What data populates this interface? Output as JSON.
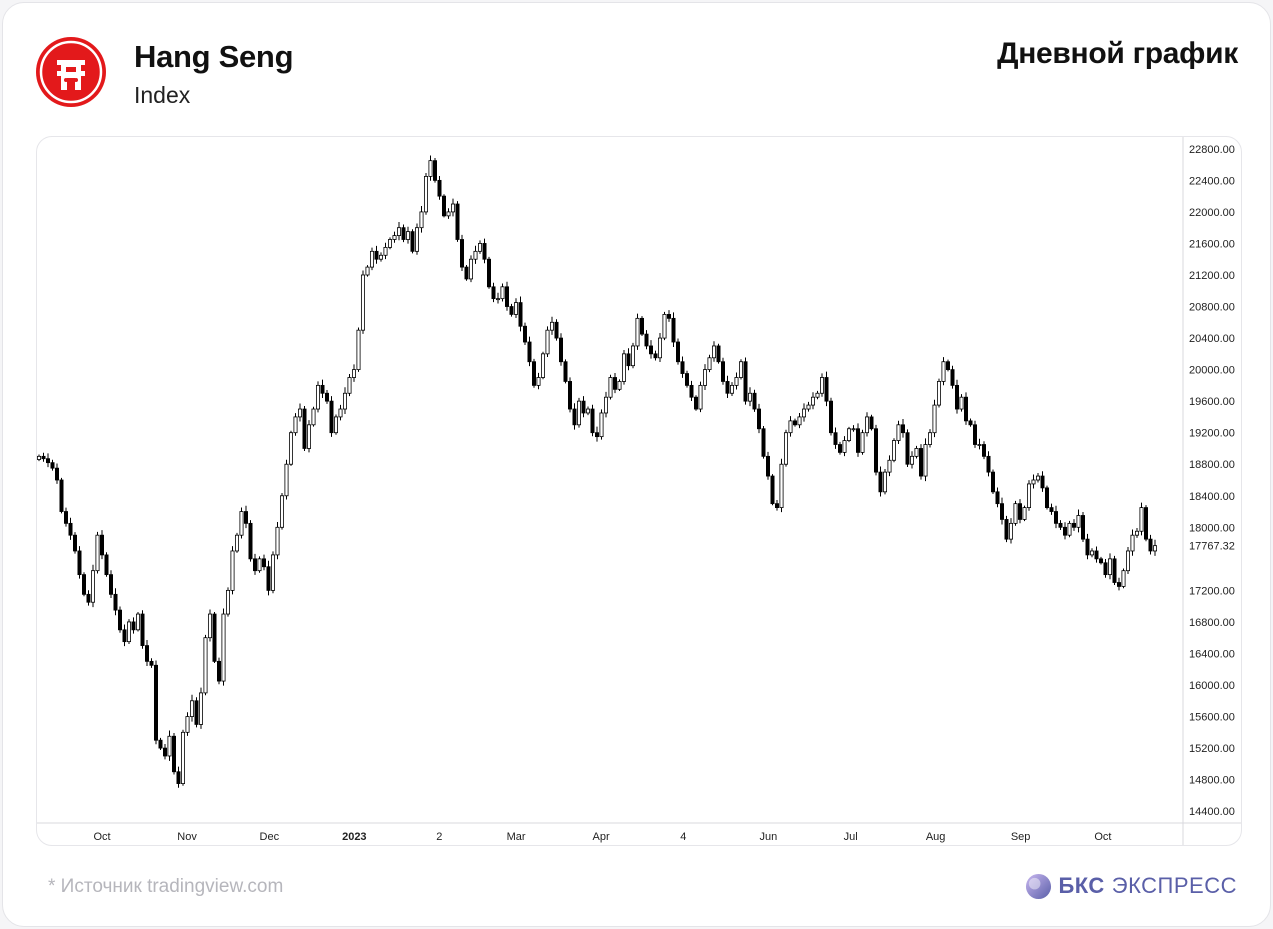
{
  "header": {
    "title": "Hang Seng",
    "subtitle": "Index",
    "chart_type_label": "Дневной график"
  },
  "footer": {
    "source": "*  Источник tradingview.com",
    "brand_bold": "БКС",
    "brand_light": "ЭКСПРЕСС"
  },
  "colors": {
    "logo_red": "#e3191b",
    "candle_outline": "#000000",
    "candle_down_fill": "#000000",
    "candle_up_fill": "#ffffff",
    "brand": "#5a5fa8"
  },
  "icons": {
    "logo": "hang-seng-logo",
    "brand": "bcs-brand-mark"
  },
  "chart_data": {
    "type": "candlestick",
    "title": "",
    "xlabel": "",
    "ylabel": "",
    "y_ticks": [
      "22800.00",
      "22400.00",
      "22000.00",
      "21600.00",
      "21200.00",
      "20800.00",
      "20400.00",
      "20000.00",
      "19600.00",
      "19200.00",
      "18800.00",
      "18400.00",
      "18000.00",
      "17200.00",
      "16800.00",
      "16400.00",
      "16000.00",
      "15600.00",
      "15200.00",
      "14800.00",
      "14400.00"
    ],
    "last_price": "17767.32",
    "ylim": [
      14250,
      22950
    ],
    "x_ticks": [
      {
        "label": "Oct",
        "date": "2022-10-01",
        "bold": false
      },
      {
        "label": "Nov",
        "date": "2022-11-01",
        "bold": false
      },
      {
        "label": "Dec",
        "date": "2022-12-01",
        "bold": false
      },
      {
        "label": "2023",
        "date": "2023-01-01",
        "bold": true
      },
      {
        "label": "2",
        "date": "2023-02-01",
        "bold": false
      },
      {
        "label": "Mar",
        "date": "2023-03-01",
        "bold": false
      },
      {
        "label": "Apr",
        "date": "2023-04-01",
        "bold": false
      },
      {
        "label": "4",
        "date": "2023-05-01",
        "bold": false
      },
      {
        "label": "Jun",
        "date": "2023-06-01",
        "bold": false
      },
      {
        "label": "Jul",
        "date": "2023-07-01",
        "bold": false
      },
      {
        "label": "Aug",
        "date": "2023-08-01",
        "bold": false
      },
      {
        "label": "Sep",
        "date": "2023-09-01",
        "bold": false
      },
      {
        "label": "Oct",
        "date": "2023-10-01",
        "bold": false
      }
    ],
    "series": [
      {
        "x_start": "2022-09-08",
        "x_end": "2023-10-20",
        "close": [
          18900,
          18870,
          18820,
          18750,
          18600,
          18200,
          18050,
          17900,
          17700,
          17400,
          17150,
          17050,
          17450,
          17900,
          17650,
          17400,
          17150,
          16950,
          16700,
          16550,
          16800,
          16700,
          16900,
          16500,
          16300,
          16250,
          15300,
          15200,
          15100,
          15350,
          14900,
          14750,
          15400,
          15600,
          15800,
          15500,
          15900,
          16600,
          16900,
          16300,
          16050,
          16900,
          17200,
          17700,
          17900,
          18200,
          18050,
          17600,
          17450,
          17600,
          17500,
          17200,
          17650,
          18000,
          18400,
          18800,
          19200,
          19400,
          19500,
          19000,
          19300,
          19500,
          19800,
          19700,
          19600,
          19200,
          19400,
          19500,
          19700,
          19900,
          20000,
          20500,
          21200,
          21300,
          21500,
          21400,
          21450,
          21550,
          21650,
          21700,
          21800,
          21650,
          21750,
          21500,
          21800,
          22000,
          22450,
          22650,
          22400,
          22200,
          21950,
          22000,
          22100,
          21650,
          21300,
          21150,
          21400,
          21500,
          21600,
          21400,
          21050,
          20900,
          20900,
          21050,
          20800,
          20700,
          20850,
          20550,
          20350,
          20100,
          19800,
          19900,
          20200,
          20500,
          20600,
          20400,
          20100,
          19850,
          19500,
          19300,
          19600,
          19450,
          19500,
          19200,
          19150,
          19450,
          19650,
          19900,
          19750,
          19850,
          20200,
          20050,
          20300,
          20650,
          20450,
          20300,
          20200,
          20150,
          20400,
          20700,
          20650,
          20350,
          20100,
          19950,
          19800,
          19650,
          19500,
          19800,
          20000,
          20150,
          20300,
          20100,
          19850,
          19700,
          19800,
          19900,
          20100,
          19600,
          19700,
          19500,
          19250,
          18900,
          18650,
          18300,
          18250,
          18800,
          19200,
          19350,
          19300,
          19400,
          19500,
          19550,
          19650,
          19700,
          19900,
          19600,
          19200,
          19050,
          18950,
          19100,
          19250,
          19250,
          18950,
          19200,
          19400,
          19250,
          18700,
          18450,
          18700,
          18850,
          19100,
          19300,
          19200,
          18800,
          18900,
          19000,
          18650,
          19050,
          19200,
          19550,
          19850,
          20100,
          20000,
          19800,
          19500,
          19650,
          19350,
          19300,
          19050,
          19050,
          18900,
          18700,
          18450,
          18300,
          18100,
          17850,
          18050,
          18300,
          18100,
          18250,
          18550,
          18600,
          18650,
          18500,
          18250,
          18200,
          18050,
          18000,
          17900,
          18050,
          18000,
          18150,
          17850,
          17650,
          17700,
          17600,
          17550,
          17400,
          17600,
          17300,
          17250,
          17450,
          17700,
          17900,
          17950,
          18250,
          17850,
          17700,
          17767.32
        ]
      }
    ]
  }
}
